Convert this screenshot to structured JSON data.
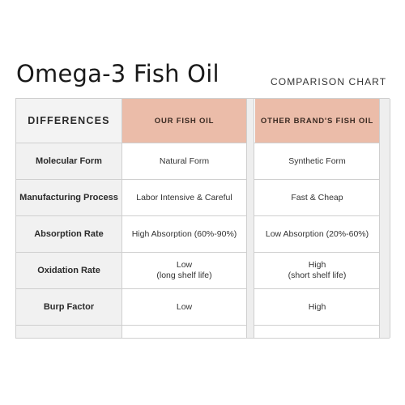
{
  "title": "Omega-3 Fish Oil",
  "subtitle": "COMPARISON CHART",
  "header": {
    "label": "DIFFERENCES",
    "ours": "OUR FISH OIL",
    "theirs": "OTHER BRAND'S FISH OIL"
  },
  "rows": [
    {
      "label": "Molecular Form",
      "ours": [
        "Natural Form"
      ],
      "theirs": [
        "Synthetic Form"
      ]
    },
    {
      "label": "Manufacturing Process",
      "ours": [
        "Labor Intensive & Careful"
      ],
      "theirs": [
        "Fast & Cheap"
      ]
    },
    {
      "label": "Absorption Rate",
      "ours": [
        "High Absorption (60%-90%)"
      ],
      "theirs": [
        "Low Absorption (20%-60%)"
      ]
    },
    {
      "label": "Oxidation Rate",
      "ours": [
        "Low",
        "(long shelf life)"
      ],
      "theirs": [
        "High",
        "(short shelf life)"
      ]
    },
    {
      "label": "Burp Factor",
      "ours": [
        "Low"
      ],
      "theirs": [
        "High"
      ]
    }
  ],
  "colors": {
    "accent": "#ebbca9",
    "label_bg": "#f1f1f1",
    "border": "#cfcfcf"
  }
}
